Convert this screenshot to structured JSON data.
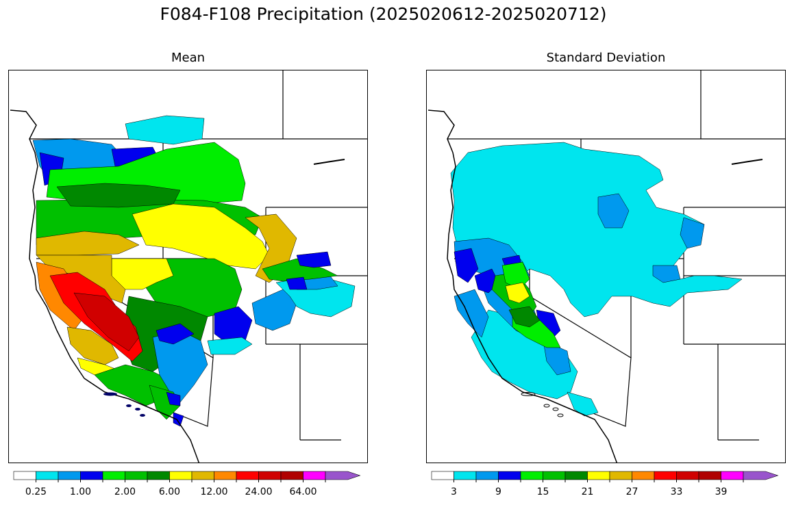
{
  "title": "F084-F108 Precipitation (2025020612-2025020712)",
  "panels": {
    "mean": {
      "title": "Mean",
      "colorbar": {
        "labels": [
          "0.25",
          "1.00",
          "2.00",
          "6.00",
          "12.00",
          "24.00",
          "64.00"
        ],
        "colors": [
          "#ffffff",
          "#00e5ee",
          "#0099ee",
          "#0000ee",
          "#00ee00",
          "#00c000",
          "#008800",
          "#ffff00",
          "#e0b800",
          "#ff8800",
          "#ff0000",
          "#d00000",
          "#b00000",
          "#ff00ff",
          "#9955cc"
        ]
      }
    },
    "std": {
      "title": "Standard Deviation",
      "colorbar": {
        "labels": [
          "3",
          "9",
          "15",
          "21",
          "27",
          "33",
          "39"
        ],
        "colors": [
          "#ffffff",
          "#00e5ee",
          "#0099ee",
          "#0000ee",
          "#00ee00",
          "#00c000",
          "#008800",
          "#ffff00",
          "#e0b800",
          "#ff8800",
          "#ff0000",
          "#d00000",
          "#b00000",
          "#ff00ff",
          "#9955cc"
        ]
      }
    }
  }
}
